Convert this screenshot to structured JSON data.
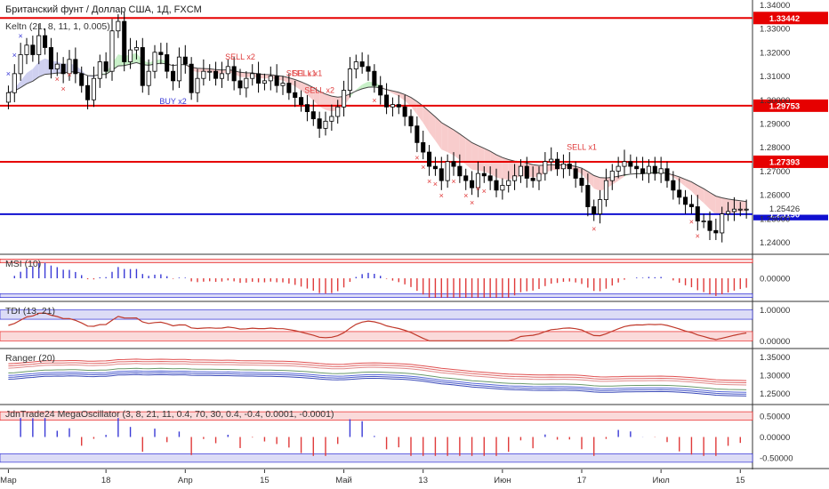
{
  "header": {
    "title": "Британский фунт / Доллар США, 1Д, FXCM",
    "indicator": "Keltn (21, 8, 11, 1, 0.005)"
  },
  "colors": {
    "up": "#ffffff",
    "down": "#000000",
    "level": "#e60000",
    "support": "#1010d0",
    "buy_marker": "#3a3ad6",
    "sell_marker": "#e03a3a",
    "band_up": "#c8f0c8",
    "band_down": "#f8cccc",
    "band_neutral": "#cfd0f0"
  },
  "chart_data": [
    {
      "type": "candlestick",
      "pane": "price",
      "ylim": [
        1.235,
        1.342
      ],
      "y_ticks": [
        "1.34000",
        "1.33000",
        "1.32000",
        "1.31000",
        "1.30000",
        "1.29000",
        "1.28000",
        "1.27000",
        "1.26000",
        "1.25000",
        "1.24000"
      ],
      "y_tick_values": [
        1.34,
        1.33,
        1.32,
        1.31,
        1.3,
        1.29,
        1.28,
        1.27,
        1.26,
        1.25,
        1.24
      ],
      "x_labels": [
        "Мар",
        "18",
        "Апр",
        "15",
        "Май",
        "13",
        "Июн",
        "17",
        "Июл",
        "15"
      ],
      "x_label_index": [
        3,
        19,
        32,
        45,
        58,
        71,
        84,
        97,
        110,
        123
      ],
      "n_bars": 122,
      "close": [
        1.303,
        1.311,
        1.319,
        1.323,
        1.319,
        1.327,
        1.322,
        1.313,
        1.315,
        1.311,
        1.317,
        1.311,
        1.306,
        1.3,
        1.309,
        1.316,
        1.312,
        1.329,
        1.333,
        1.316,
        1.321,
        1.322,
        1.306,
        1.312,
        1.32,
        1.319,
        1.312,
        1.308,
        1.318,
        1.315,
        1.303,
        1.309,
        1.312,
        1.312,
        1.309,
        1.311,
        1.314,
        1.308,
        1.305,
        1.309,
        1.311,
        1.307,
        1.308,
        1.31,
        1.306,
        1.307,
        1.303,
        1.301,
        1.298,
        1.295,
        1.292,
        1.288,
        1.291,
        1.293,
        1.297,
        1.304,
        1.313,
        1.316,
        1.314,
        1.312,
        1.306,
        1.302,
        1.297,
        1.298,
        1.297,
        1.293,
        1.289,
        1.282,
        1.278,
        1.272,
        1.271,
        1.266,
        1.274,
        1.272,
        1.268,
        1.266,
        1.263,
        1.269,
        1.268,
        1.266,
        1.262,
        1.264,
        1.266,
        1.268,
        1.272,
        1.267,
        1.266,
        1.269,
        1.274,
        1.275,
        1.271,
        1.273,
        1.271,
        1.267,
        1.264,
        1.255,
        1.252,
        1.258,
        1.266,
        1.27,
        1.272,
        1.274,
        1.272,
        1.271,
        1.269,
        1.272,
        1.269,
        1.271,
        1.266,
        1.262,
        1.259,
        1.256,
        1.255,
        1.249,
        1.249,
        1.245,
        1.244,
        1.252,
        1.253,
        1.254,
        1.254,
        1.254
      ],
      "levels": [
        {
          "value": 1.33442,
          "label": "1.33442",
          "kind": "resistance"
        },
        {
          "value": 1.29753,
          "label": "1.29753",
          "kind": "resistance"
        },
        {
          "value": 1.27393,
          "label": "1.27393",
          "kind": "resistance"
        },
        {
          "value": 1.2519,
          "label": "1.25190",
          "kind": "support"
        }
      ],
      "last_price": {
        "value": 1.25426,
        "label": "1.25426"
      },
      "annotations": [
        {
          "text": "SELL x2",
          "bar": 38
        },
        {
          "text": "SELL x1",
          "bar": 49
        },
        {
          "text": "SELL x1",
          "bar": 48
        },
        {
          "text": "SELL x2",
          "bar": 51
        },
        {
          "text": "BUY x2",
          "bar": 27
        },
        {
          "text": "SELL x1",
          "bar": 94
        }
      ]
    },
    {
      "type": "bar",
      "pane": "msi",
      "title": "MSI (10)",
      "ylim": [
        -1.2,
        1.2
      ],
      "y_ticks": [
        "0.00000"
      ],
      "y_tick_values": [
        0
      ]
    },
    {
      "type": "line",
      "pane": "tdi",
      "title": "TDI (13, 21)",
      "ylim": [
        -0.25,
        1.25
      ],
      "y_ticks": [
        "1.00000",
        "0.00000"
      ],
      "y_tick_values": [
        1,
        0
      ]
    },
    {
      "type": "line",
      "pane": "ranger",
      "title": "Ranger (20)",
      "ylim": [
        1.22,
        1.37
      ],
      "y_ticks": [
        "1.35000",
        "1.30000",
        "1.25000"
      ],
      "y_tick_values": [
        1.35,
        1.3,
        1.25
      ]
    },
    {
      "type": "bar",
      "pane": "mega",
      "title": "JdnTrade24 MegaOscillator (3, 8, 21, 11, 0.4, 70, 30, 0.4, -0.4, 0.0001, -0.0001)",
      "ylim": [
        -0.75,
        0.75
      ],
      "y_ticks": [
        "0.50000",
        "0.00000",
        "-0.50000"
      ],
      "y_tick_values": [
        0.5,
        0,
        -0.5
      ]
    }
  ]
}
